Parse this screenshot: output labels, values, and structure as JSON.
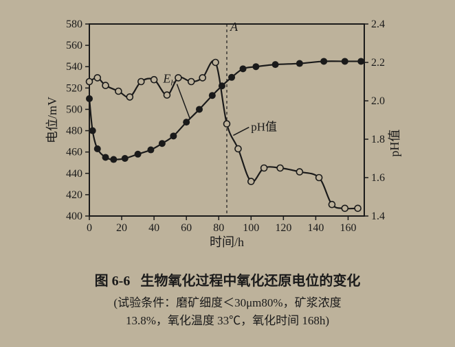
{
  "figure": {
    "type": "line",
    "background_color": "#bdb29b",
    "plot_color": "#1a1a1a",
    "grid_color": "#7a7265",
    "axis_width": 2,
    "x": {
      "label": "时间/h",
      "min": 0,
      "max": 170,
      "tick_step": 20,
      "ticks": [
        0,
        20,
        40,
        60,
        80,
        100,
        120,
        140,
        160
      ],
      "label_fontsize": 18,
      "tick_fontsize": 16
    },
    "y_left": {
      "label": "电位/mV",
      "min": 400,
      "max": 580,
      "tick_step": 20,
      "ticks": [
        400,
        420,
        440,
        460,
        480,
        500,
        520,
        540,
        560,
        580
      ],
      "label_fontsize": 18,
      "tick_fontsize": 16
    },
    "y_right": {
      "label": "pH值",
      "min": 1.4,
      "max": 2.4,
      "tick_step": 0.2,
      "ticks": [
        1.4,
        1.6,
        1.8,
        2.0,
        2.2,
        2.4
      ],
      "label_fontsize": 18,
      "tick_fontsize": 16
    },
    "series": {
      "Eh": {
        "label": "Eₕ",
        "marker": "filled-circle",
        "marker_color": "#1a1a1a",
        "marker_size": 5,
        "line_color": "#1a1a1a",
        "line_width": 2.2,
        "axis": "left",
        "points_x": [
          0,
          2,
          5,
          10,
          15,
          22,
          30,
          38,
          45,
          52,
          60,
          68,
          76,
          82,
          88,
          95,
          103,
          115,
          130,
          145,
          158,
          168
        ],
        "points_y": [
          510,
          480,
          463,
          455,
          453,
          454,
          458,
          462,
          468,
          475,
          488,
          500,
          513,
          522,
          530,
          538,
          540,
          542,
          543,
          545,
          545,
          545
        ]
      },
      "pH": {
        "label": "pH值",
        "marker": "open-circle",
        "marker_color": "#1a1a1a",
        "marker_fill": "#bdb29b",
        "marker_size": 4.5,
        "line_color": "#1a1a1a",
        "line_width": 2.2,
        "axis": "right",
        "points_x": [
          0,
          5,
          10,
          18,
          25,
          32,
          40,
          48,
          55,
          63,
          70,
          78,
          85,
          92,
          100,
          108,
          118,
          130,
          142,
          150,
          158,
          166
        ],
        "points_y": [
          2.1,
          2.12,
          2.08,
          2.05,
          2.02,
          2.1,
          2.11,
          2.03,
          2.12,
          2.1,
          2.12,
          2.2,
          1.88,
          1.75,
          1.58,
          1.65,
          1.65,
          1.63,
          1.6,
          1.46,
          1.44,
          1.44
        ]
      }
    },
    "annotations": {
      "A_marker": {
        "label": "A",
        "x": 85,
        "fontsize": 18,
        "style": "italic"
      },
      "Eh_label": {
        "text": "Eₕ",
        "x": 55,
        "y_mv": 525
      },
      "pH_label": {
        "text": "pH值",
        "x": 100,
        "y_mv": 480
      },
      "vertical_dash": {
        "x": 85,
        "dash": "4,4",
        "color": "#1a1a1a"
      }
    },
    "caption": {
      "number": "图 6-6",
      "title": "生物氧化过程中氧化还原电位的变化",
      "conditions_line1": "(试验条件：磨矿细度＜30μm80%，矿浆浓度",
      "conditions_line2": "13.8%，氧化温度 33℃，氧化时间 168h)"
    }
  }
}
